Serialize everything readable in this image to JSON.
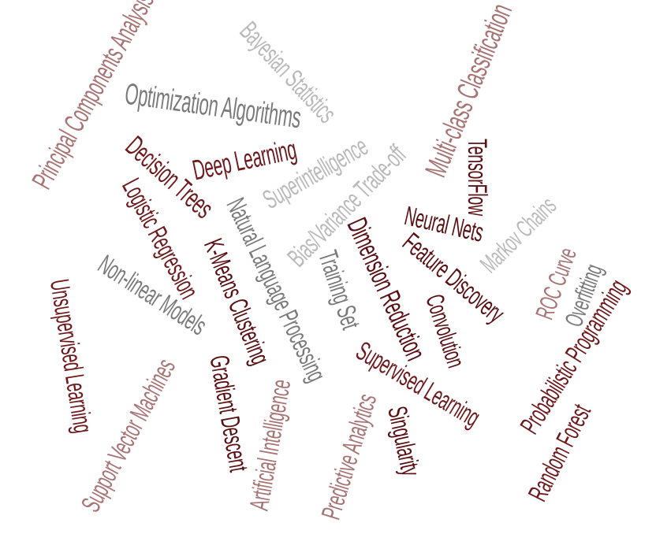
{
  "colors": {
    "dark_maroon": "#5a0f12",
    "maroon": "#6e1a1c",
    "mauve": "#a87373",
    "gray": "#7a7a7a",
    "light_gray": "#b9b9b9"
  },
  "words": [
    {
      "text": "Principal Components Analysis",
      "color": "#a87373"
    },
    {
      "text": "Bayesian Statistics",
      "color": "#b9b9b9"
    },
    {
      "text": "Optimization Algorithms",
      "color": "#7a7a7a"
    },
    {
      "text": "Multi-class Classification",
      "color": "#a87373"
    },
    {
      "text": "TensorFlow",
      "color": "#5a0f12"
    },
    {
      "text": "Deep Learning",
      "color": "#6e1a1c"
    },
    {
      "text": "Decision Trees",
      "color": "#6e1a1c"
    },
    {
      "text": "Superintelligence",
      "color": "#b9b9b9"
    },
    {
      "text": "Bias/Variance Trade-off",
      "color": "#b9b9b9"
    },
    {
      "text": "Logistic Regression",
      "color": "#6e1a1c"
    },
    {
      "text": "Natural Language Processing",
      "color": "#7a7a7a"
    },
    {
      "text": "K-Means Clustering",
      "color": "#5a0f12"
    },
    {
      "text": "Neural Nets",
      "color": "#5a0f12"
    },
    {
      "text": "Markov Chains",
      "color": "#b9b9b9"
    },
    {
      "text": "Dimension Reduction",
      "color": "#5a0f12"
    },
    {
      "text": "Feature Discovery",
      "color": "#5a0f12"
    },
    {
      "text": "Training Set",
      "color": "#7a7a7a"
    },
    {
      "text": "ROC Curve",
      "color": "#a87373"
    },
    {
      "text": "Overfitting",
      "color": "#7a7a7a"
    },
    {
      "text": "Non-linear Models",
      "color": "#7a7a7a"
    },
    {
      "text": "Convolution",
      "color": "#5a0f12"
    },
    {
      "text": "Unsupervised Learning",
      "color": "#6e1a1c"
    },
    {
      "text": "Probabilistic Programming",
      "color": "#6e1a1c"
    },
    {
      "text": "Gradient Descent",
      "color": "#5a0f12"
    },
    {
      "text": "Supervised Learning",
      "color": "#6e1a1c"
    },
    {
      "text": "Support Vector Machines",
      "color": "#a87373"
    },
    {
      "text": "Artificial Intelligence",
      "color": "#a87373"
    },
    {
      "text": "Predictive Analytics",
      "color": "#a87373"
    },
    {
      "text": "Singularity",
      "color": "#5a0f12"
    },
    {
      "text": "Random Forest",
      "color": "#6e1a1c"
    }
  ]
}
